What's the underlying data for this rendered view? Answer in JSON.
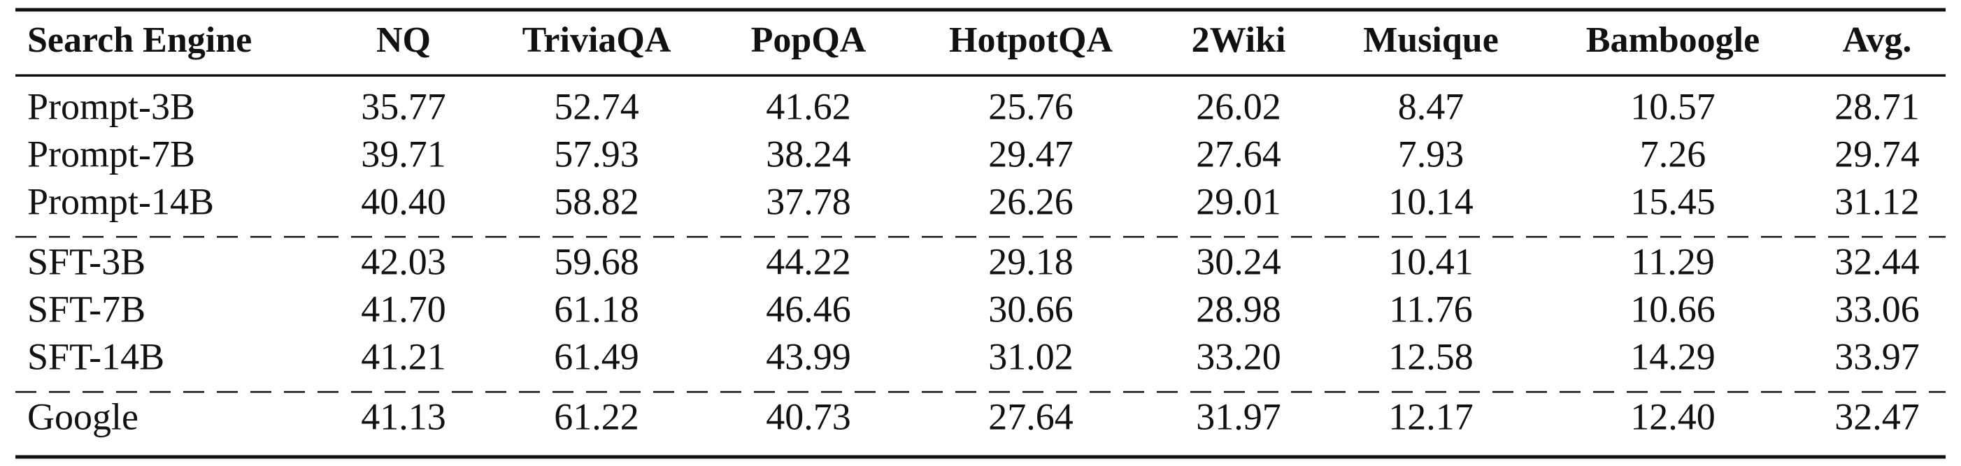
{
  "table": {
    "header": [
      "Search Engine",
      "NQ",
      "TriviaQA",
      "PopQA",
      "HotpotQA",
      "2Wiki",
      "Musique",
      "Bamboogle",
      "Avg."
    ],
    "groups": [
      [
        [
          "Prompt-3B",
          "35.77",
          "52.74",
          "41.62",
          "25.76",
          "26.02",
          "8.47",
          "10.57",
          "28.71"
        ],
        [
          "Prompt-7B",
          "39.71",
          "57.93",
          "38.24",
          "29.47",
          "27.64",
          "7.93",
          "7.26",
          "29.74"
        ],
        [
          "Prompt-14B",
          "40.40",
          "58.82",
          "37.78",
          "26.26",
          "29.01",
          "10.14",
          "15.45",
          "31.12"
        ]
      ],
      [
        [
          "SFT-3B",
          "42.03",
          "59.68",
          "44.22",
          "29.18",
          "30.24",
          "10.41",
          "11.29",
          "32.44"
        ],
        [
          "SFT-7B",
          "41.70",
          "61.18",
          "46.46",
          "30.66",
          "28.98",
          "11.76",
          "10.66",
          "33.06"
        ],
        [
          "SFT-14B",
          "41.21",
          "61.49",
          "43.99",
          "31.02",
          "33.20",
          "12.58",
          "14.29",
          "33.97"
        ]
      ],
      [
        [
          "Google",
          "41.13",
          "61.22",
          "40.73",
          "27.64",
          "31.97",
          "12.17",
          "12.40",
          "32.47"
        ]
      ]
    ]
  }
}
